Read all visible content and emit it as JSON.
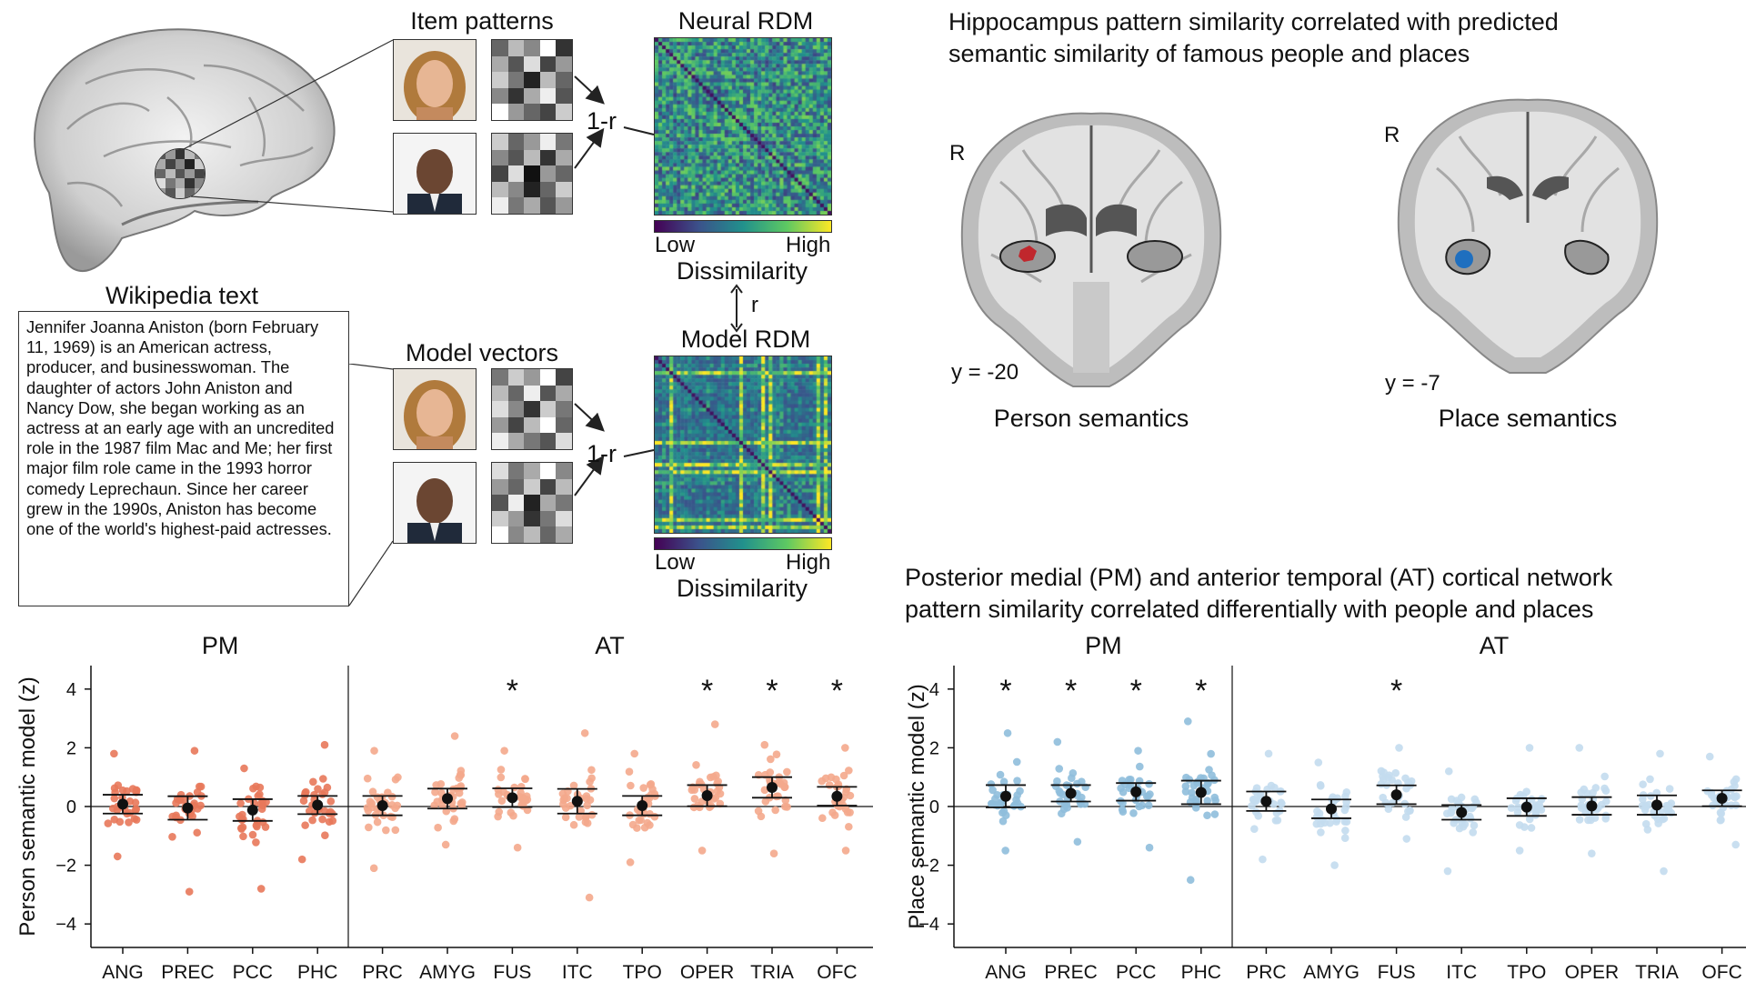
{
  "labels": {
    "item_patterns": "Item patterns",
    "neural_rdm": "Neural RDM",
    "model_vectors": "Model vectors",
    "model_rdm": "Model RDM",
    "wikipedia_text": "Wikipedia text",
    "one_minus_r": "1-r",
    "r": "r",
    "colorbar_low": "Low",
    "colorbar_high": "High",
    "dissimilarity": "Dissimilarity"
  },
  "wikipedia_paragraph": "Jennifer Joanna Aniston (born February 11, 1969) is an American actress, producer, and businesswoman. The daughter of actors John Aniston and Nancy Dow, she began working as an actress at an early age with an uncredited role in the 1987 film Mac and Me; her first major film role came in the 1993 horror comedy Leprechaun. Since her career grew in the 1990s, Aniston has become one of the world's highest-paid actresses.",
  "hippocampus": {
    "title_line1": "Hippocampus pattern similarity correlated with predicted",
    "title_line2": "semantic similarity of famous people and places",
    "left_orientation": "R",
    "left_slice": "y = -20",
    "left_caption": "Person semantics",
    "right_orientation": "R",
    "right_slice": "y = -7",
    "right_caption": "Place semantics",
    "person_color": "#c0272d",
    "place_color": "#1f6fbf"
  },
  "network": {
    "title_line1": "Posterior medial (PM) and anterior temporal (AT) cortical network",
    "title_line2": "pattern similarity correlated differentially with people and places"
  },
  "chart_data": [
    {
      "type": "scatter",
      "ylabel": "Person semantic model (z)",
      "ylim": [
        -4.8,
        4.8
      ],
      "yticks": [
        -4,
        -2,
        0,
        2,
        4
      ],
      "groups": [
        {
          "label": "PM",
          "categories": [
            "ANG",
            "PREC",
            "PCC",
            "PHC"
          ]
        },
        {
          "label": "AT",
          "categories": [
            "PRC",
            "AMYG",
            "FUS",
            "ITC",
            "TPO",
            "OPER",
            "TRIA",
            "OFC"
          ]
        }
      ],
      "categories": [
        "ANG",
        "PREC",
        "PCC",
        "PHC",
        "PRC",
        "AMYG",
        "FUS",
        "ITC",
        "TPO",
        "OPER",
        "TRIA",
        "OFC"
      ],
      "means": [
        0.08,
        -0.05,
        -0.12,
        0.05,
        0.03,
        0.27,
        0.3,
        0.18,
        0.03,
        0.37,
        0.65,
        0.35
      ],
      "sem": [
        0.32,
        0.4,
        0.37,
        0.31,
        0.33,
        0.34,
        0.32,
        0.42,
        0.33,
        0.36,
        0.35,
        0.32
      ],
      "spread": [
        0.9,
        1.05,
        1.05,
        0.95,
        0.95,
        1.0,
        0.95,
        1.2,
        0.95,
        0.95,
        0.95,
        0.9
      ],
      "range": [
        [
          -1.7,
          1.8
        ],
        [
          -2.9,
          1.9
        ],
        [
          -2.8,
          1.3
        ],
        [
          -1.8,
          2.1
        ],
        [
          -2.1,
          1.9
        ],
        [
          -1.3,
          2.4
        ],
        [
          -1.4,
          1.9
        ],
        [
          -3.1,
          2.5
        ],
        [
          -1.9,
          1.8
        ],
        [
          -1.5,
          2.8
        ],
        [
          -1.6,
          2.1
        ],
        [
          -1.5,
          2.0
        ]
      ],
      "significant": [
        false,
        false,
        false,
        false,
        false,
        false,
        true,
        false,
        false,
        true,
        true,
        true
      ],
      "star": "*",
      "colors": {
        "PM": "#e8785a",
        "AT": "#f4a98c",
        "mean": "#111111"
      },
      "n_per_group": 30
    },
    {
      "type": "scatter",
      "ylabel": "Place semantic model (z)",
      "ylim": [
        -4.8,
        4.8
      ],
      "yticks": [
        -4,
        -2,
        0,
        2,
        4
      ],
      "groups": [
        {
          "label": "PM",
          "categories": [
            "ANG",
            "PREC",
            "PCC",
            "PHC"
          ]
        },
        {
          "label": "AT",
          "categories": [
            "PRC",
            "AMYG",
            "FUS",
            "ITC",
            "TPO",
            "OPER",
            "TRIA",
            "OFC"
          ]
        }
      ],
      "categories": [
        "ANG",
        "PREC",
        "PCC",
        "PHC",
        "PRC",
        "AMYG",
        "FUS",
        "ITC",
        "TPO",
        "OPER",
        "TRIA",
        "OFC"
      ],
      "means": [
        0.35,
        0.45,
        0.5,
        0.48,
        0.18,
        -0.08,
        0.4,
        -0.2,
        -0.02,
        0.02,
        0.05,
        0.28
      ],
      "sem": [
        0.38,
        0.28,
        0.3,
        0.4,
        0.33,
        0.32,
        0.32,
        0.25,
        0.3,
        0.3,
        0.33,
        0.27
      ],
      "spread": [
        1.0,
        0.85,
        0.8,
        1.05,
        0.85,
        0.8,
        0.8,
        0.75,
        0.8,
        0.8,
        0.85,
        0.75
      ],
      "range": [
        [
          -1.5,
          2.5
        ],
        [
          -1.2,
          2.2
        ],
        [
          -1.4,
          1.9
        ],
        [
          -2.5,
          2.9
        ],
        [
          -1.8,
          1.8
        ],
        [
          -2.0,
          1.5
        ],
        [
          -1.1,
          2.0
        ],
        [
          -2.2,
          1.2
        ],
        [
          -1.5,
          2.0
        ],
        [
          -1.6,
          2.0
        ],
        [
          -2.2,
          1.8
        ],
        [
          -1.3,
          1.7
        ]
      ],
      "significant": [
        true,
        true,
        true,
        true,
        false,
        false,
        true,
        false,
        false,
        false,
        false,
        false
      ],
      "star": "*",
      "colors": {
        "PM": "#8fbedc",
        "AT": "#c3dcee",
        "mean": "#111111"
      },
      "n_per_group": 30
    }
  ]
}
